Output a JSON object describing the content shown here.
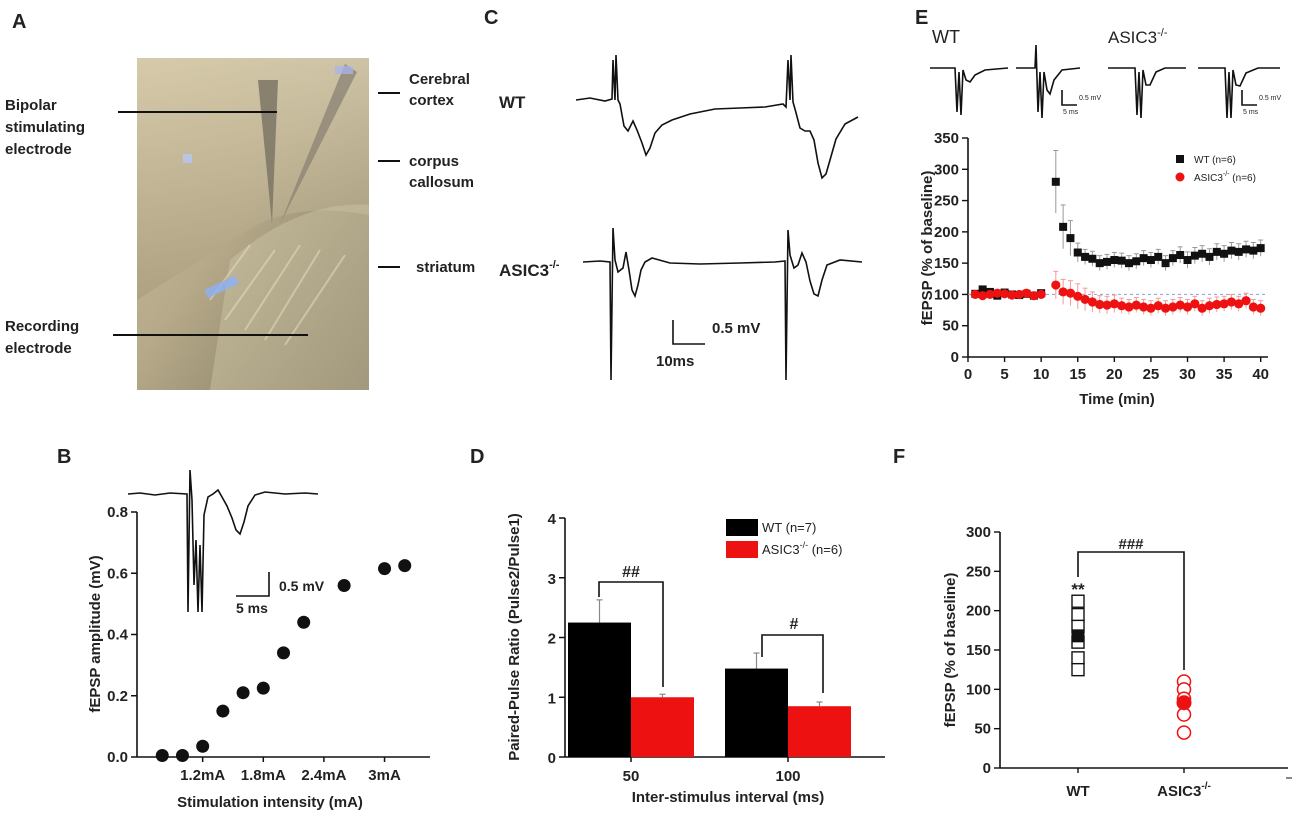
{
  "panel_labels": {
    "A": "A",
    "B": "B",
    "C": "C",
    "D": "D",
    "E": "E",
    "F": "F"
  },
  "panel_a": {
    "labels": {
      "bipolar": [
        "Bipolar",
        "stimulating",
        "electrode"
      ],
      "recording": [
        "Recording",
        "electrode"
      ],
      "cortex": [
        "Cerebral",
        "cortex"
      ],
      "callosum": [
        "corpus",
        "callosum"
      ],
      "striatum": "striatum"
    }
  },
  "panel_c": {
    "wt_label": "WT",
    "ko_label": "ASIC3",
    "ko_sup": "-/-",
    "scale_v": "0.5 mV",
    "scale_t": "10ms"
  },
  "panel_b_inset": {
    "scale_v": "0.5 mV",
    "scale_t": "5 ms"
  },
  "panel_e_traces": {
    "wt_label": "WT",
    "ko_label": "ASIC3",
    "ko_sup": "-/-",
    "scale_v": "0.5 mV",
    "scale_t": "5 ms"
  },
  "chart_data": [
    {
      "id": "B",
      "type": "scatter",
      "xlabel": "Stimulation intensity (mA)",
      "ylabel": "fEPSP amplitude (mV)",
      "ylim": [
        0,
        0.8
      ],
      "yticks": [
        "0.0",
        "0.2",
        "0.4",
        "0.6",
        "0.8"
      ],
      "xlim": [
        0.55,
        3.45
      ],
      "xtick_values": [
        1.2,
        1.8,
        2.4,
        3.0
      ],
      "xtick_labels": [
        "1.2mA",
        "1.8mA",
        "2.4mA",
        "3mA"
      ],
      "x": [
        0.8,
        1.0,
        1.2,
        1.4,
        1.6,
        1.8,
        2.0,
        2.2,
        2.6,
        3.0,
        3.2
      ],
      "y": [
        0.005,
        0.005,
        0.035,
        0.15,
        0.21,
        0.225,
        0.34,
        0.44,
        0.56,
        0.615,
        0.625
      ]
    },
    {
      "id": "D",
      "type": "bar",
      "xlabel": "Inter-stimulus interval (ms)",
      "ylabel": "Paired-Pulse Ratio (Pulse2/Pulse1)",
      "ylim": [
        0,
        4
      ],
      "yticks": [
        "0",
        "1",
        "2",
        "3",
        "4"
      ],
      "categories": [
        "50",
        "100"
      ],
      "series": [
        {
          "name": "WT",
          "legend_n": "(n=7)",
          "values": [
            2.25,
            1.48
          ],
          "errors": [
            0.38,
            0.26
          ],
          "color": "#000000"
        },
        {
          "name": "ASIC3",
          "legend_sup": "-/-",
          "legend_n": "(n=6)",
          "values": [
            1.0,
            0.85
          ],
          "errors": [
            0.05,
            0.07
          ],
          "color": "#ee1111"
        }
      ],
      "annotations": [
        "##",
        "#"
      ]
    },
    {
      "id": "E",
      "type": "scatter",
      "xlabel": "Time (min)",
      "ylabel": "fEPSP (% of baseline)",
      "ylim": [
        0,
        350
      ],
      "xlim": [
        0,
        41
      ],
      "yticks": [
        "0",
        "50",
        "100",
        "150",
        "200",
        "250",
        "300",
        "350"
      ],
      "xticks": [
        "0",
        "5",
        "10",
        "15",
        "20",
        "25",
        "30",
        "35",
        "40"
      ],
      "reference_line": 100,
      "series": [
        {
          "name": "WT",
          "legend_n": "(n=6)",
          "color": "#111111",
          "x": [
            1,
            2,
            3,
            4,
            5,
            6,
            7,
            8,
            9,
            10,
            12,
            13,
            14,
            15,
            16,
            17,
            18,
            19,
            20,
            21,
            22,
            23,
            24,
            25,
            26,
            27,
            28,
            29,
            30,
            31,
            32,
            33,
            34,
            35,
            36,
            37,
            38,
            39,
            40
          ],
          "y": [
            101,
            108,
            104,
            98,
            103,
            100,
            99,
            101,
            98,
            102,
            280,
            208,
            190,
            167,
            160,
            157,
            150,
            152,
            155,
            154,
            150,
            153,
            158,
            155,
            160,
            150,
            158,
            163,
            155,
            162,
            165,
            160,
            168,
            165,
            170,
            168,
            172,
            170,
            174
          ],
          "err": [
            5,
            5,
            5,
            5,
            5,
            5,
            5,
            5,
            5,
            5,
            50,
            35,
            28,
            15,
            12,
            12,
            12,
            12,
            12,
            12,
            12,
            12,
            12,
            12,
            12,
            12,
            12,
            13,
            13,
            13,
            13,
            13,
            13,
            13,
            13,
            13,
            13,
            13,
            13
          ]
        },
        {
          "name": "ASIC3",
          "legend_sup": "-/-",
          "legend_n": "(n=6)",
          "color": "#ee1111",
          "x": [
            1,
            2,
            3,
            4,
            5,
            6,
            7,
            8,
            9,
            10,
            12,
            13,
            14,
            15,
            16,
            17,
            18,
            19,
            20,
            21,
            22,
            23,
            24,
            25,
            26,
            27,
            28,
            29,
            30,
            31,
            32,
            33,
            34,
            35,
            36,
            37,
            38,
            39,
            40
          ],
          "y": [
            100,
            98,
            100,
            102,
            101,
            99,
            100,
            102,
            98,
            100,
            115,
            104,
            102,
            97,
            92,
            88,
            84,
            83,
            85,
            82,
            80,
            83,
            80,
            78,
            82,
            78,
            80,
            83,
            80,
            85,
            78,
            82,
            84,
            85,
            88,
            85,
            90,
            80,
            78
          ],
          "err": [
            5,
            5,
            5,
            5,
            5,
            5,
            5,
            5,
            5,
            5,
            22,
            20,
            20,
            20,
            18,
            16,
            14,
            14,
            14,
            12,
            12,
            12,
            12,
            12,
            12,
            12,
            12,
            12,
            12,
            12,
            12,
            12,
            12,
            12,
            12,
            12,
            12,
            12,
            12
          ]
        }
      ]
    },
    {
      "id": "F",
      "type": "scatter",
      "ylabel": "fEPSP (% of baseline)",
      "ylim": [
        0,
        300
      ],
      "yticks": [
        "0",
        "50",
        "100",
        "150",
        "200",
        "250",
        "300"
      ],
      "categories": [
        "WT",
        "ASIC3"
      ],
      "category_sup": [
        "",
        "-/-"
      ],
      "series": [
        {
          "name": "WT",
          "individual": [
            212,
            195,
            180,
            160,
            140,
            125
          ],
          "mean": 168,
          "color": "#111111"
        },
        {
          "name": "ASIC3",
          "individual": [
            110,
            100,
            88,
            68,
            45
          ],
          "mean": 83,
          "color": "#ee1111"
        }
      ],
      "annotations": {
        "significance": "**",
        "between_groups": "###"
      }
    }
  ]
}
